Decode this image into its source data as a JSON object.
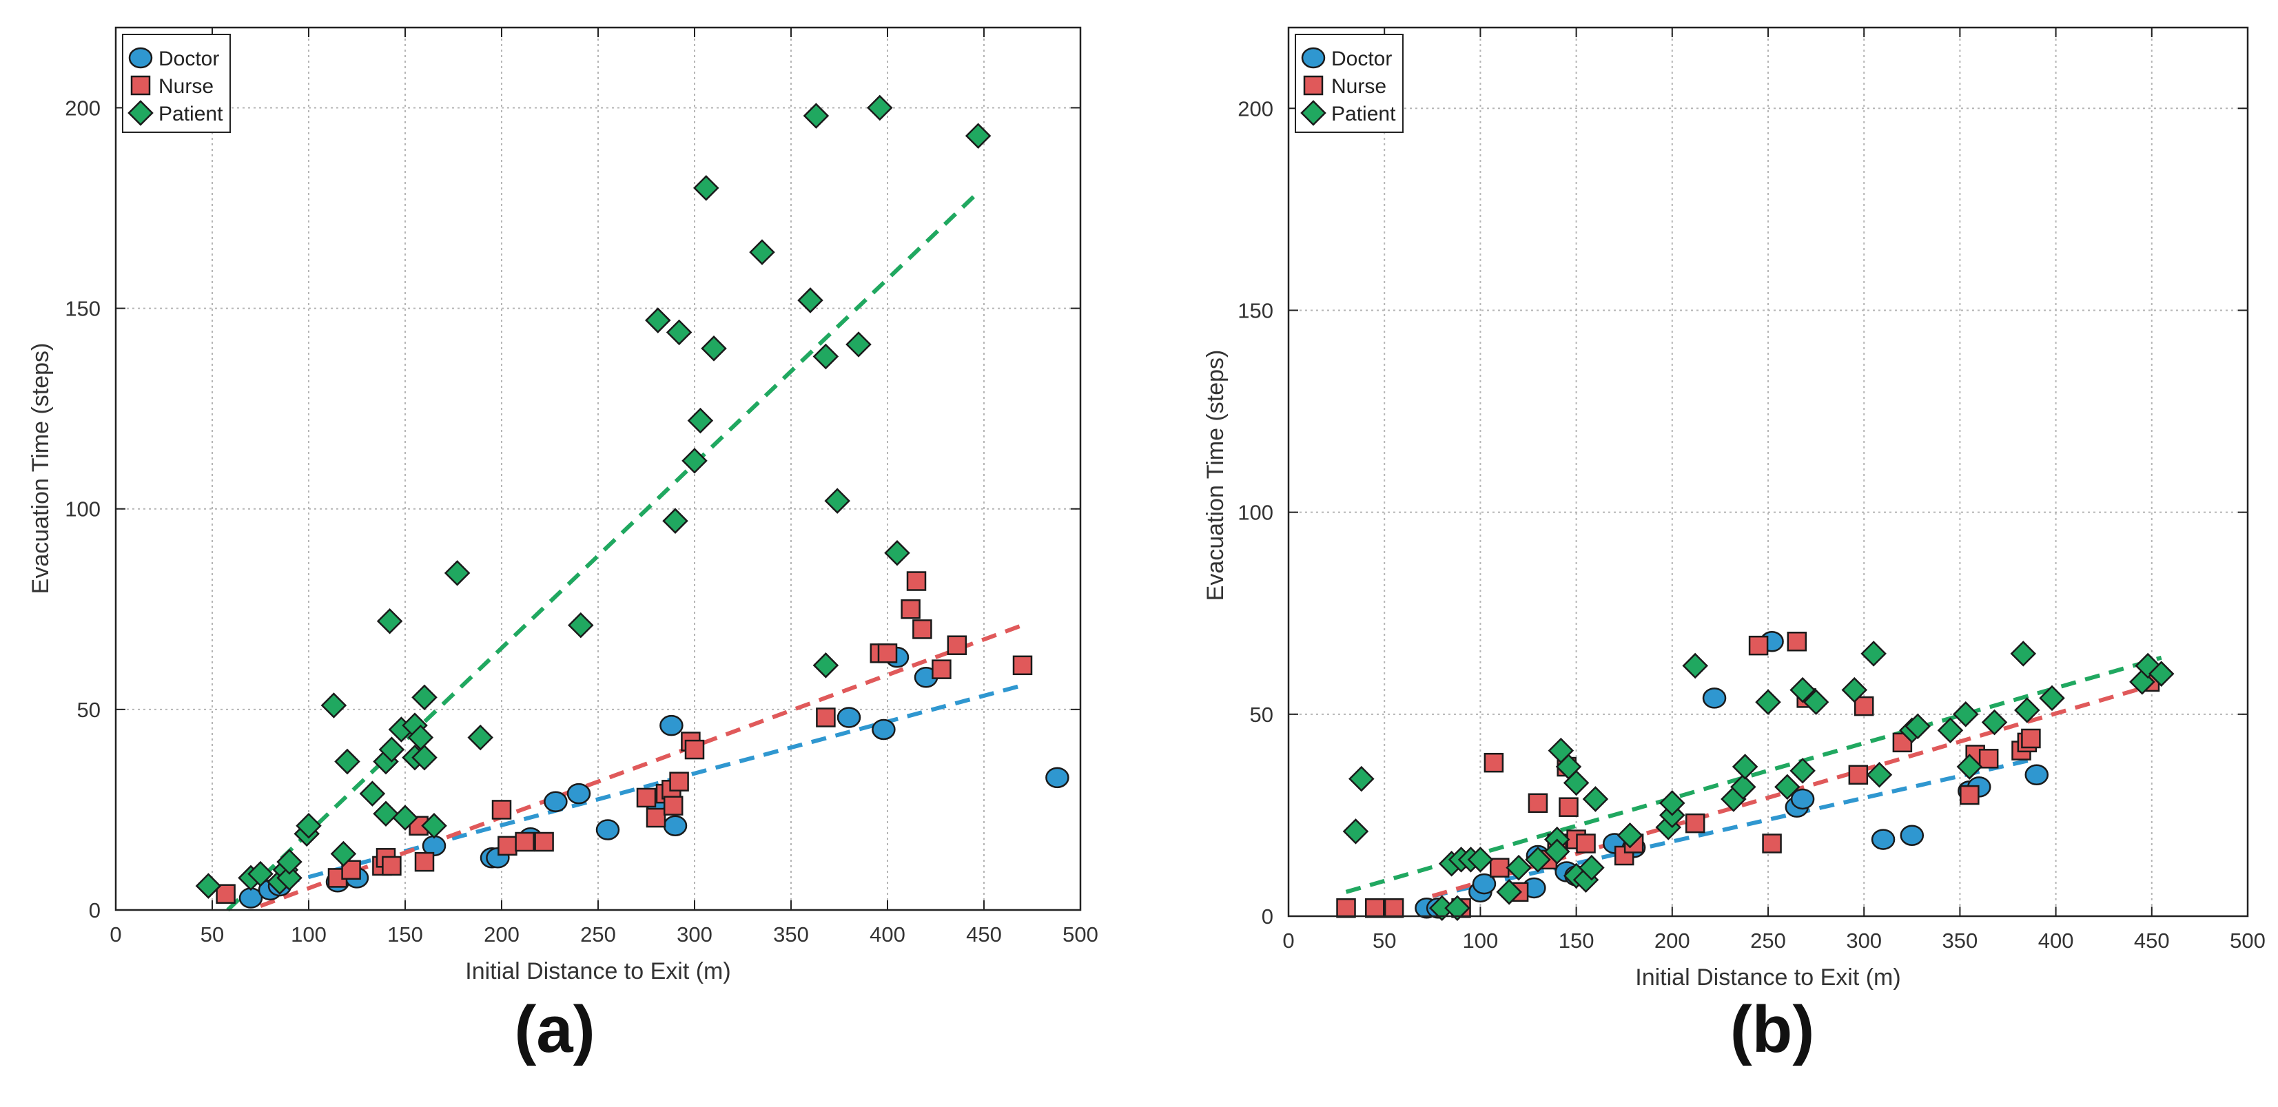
{
  "figure": {
    "panel_labels": [
      "(a)",
      "(b)"
    ]
  },
  "colors": {
    "doctor": "#2f97d0",
    "nurse": "#e0595a",
    "patient": "#20a860"
  },
  "chart_data": [
    {
      "type": "scatter",
      "panel": "(a)",
      "xlabel": "Initial Distance to Exit (m)",
      "ylabel": "Evacuation Time (steps)",
      "xlim": [
        0,
        500
      ],
      "ylim": [
        0,
        220
      ],
      "xticks": [
        0,
        50,
        100,
        150,
        200,
        250,
        300,
        350,
        400,
        450,
        500
      ],
      "yticks": [
        0,
        50,
        100,
        150,
        200
      ],
      "grid": true,
      "legend": "top-left",
      "series": [
        {
          "name": "Doctor",
          "marker": "circle",
          "color": "#2f97d0",
          "points": [
            [
              70,
              3
            ],
            [
              80,
              5
            ],
            [
              85,
              6
            ],
            [
              115,
              7
            ],
            [
              125,
              8
            ],
            [
              165,
              16
            ],
            [
              195,
              13
            ],
            [
              198,
              13
            ],
            [
              215,
              18
            ],
            [
              228,
              27
            ],
            [
              240,
              29
            ],
            [
              255,
              20
            ],
            [
              280,
              27
            ],
            [
              288,
              46
            ],
            [
              290,
              21
            ],
            [
              380,
              48
            ],
            [
              398,
              45
            ],
            [
              405,
              63
            ],
            [
              420,
              58
            ],
            [
              488,
              33
            ]
          ],
          "trend": [
            [
              75,
              5
            ],
            [
              470,
              56
            ]
          ]
        },
        {
          "name": "Nurse",
          "marker": "square",
          "color": "#e0595a",
          "points": [
            [
              57,
              4
            ],
            [
              115,
              8
            ],
            [
              122,
              10
            ],
            [
              138,
              11
            ],
            [
              140,
              13
            ],
            [
              143,
              11
            ],
            [
              157,
              21
            ],
            [
              160,
              12
            ],
            [
              200,
              25
            ],
            [
              203,
              16
            ],
            [
              212,
              17
            ],
            [
              222,
              17
            ],
            [
              275,
              28
            ],
            [
              280,
              23
            ],
            [
              285,
              29
            ],
            [
              288,
              30
            ],
            [
              289,
              26
            ],
            [
              292,
              32
            ],
            [
              298,
              42
            ],
            [
              300,
              40
            ],
            [
              368,
              48
            ],
            [
              396,
              64
            ],
            [
              400,
              64
            ],
            [
              412,
              75
            ],
            [
              415,
              82
            ],
            [
              418,
              70
            ],
            [
              428,
              60
            ],
            [
              436,
              66
            ],
            [
              470,
              61
            ]
          ],
          "trend": [
            [
              75,
              1
            ],
            [
              470,
              71
            ]
          ]
        },
        {
          "name": "Patient",
          "marker": "diamond",
          "color": "#20a860",
          "points": [
            [
              48,
              6
            ],
            [
              70,
              8
            ],
            [
              75,
              9
            ],
            [
              85,
              7
            ],
            [
              88,
              10
            ],
            [
              90,
              8
            ],
            [
              90,
              12
            ],
            [
              99,
              19
            ],
            [
              100,
              21
            ],
            [
              113,
              51
            ],
            [
              118,
              14
            ],
            [
              120,
              37
            ],
            [
              133,
              29
            ],
            [
              140,
              24
            ],
            [
              140,
              37
            ],
            [
              142,
              72
            ],
            [
              143,
              40
            ],
            [
              148,
              45
            ],
            [
              150,
              23
            ],
            [
              155,
              46
            ],
            [
              155,
              38
            ],
            [
              158,
              43
            ],
            [
              160,
              38
            ],
            [
              160,
              53
            ],
            [
              165,
              21
            ],
            [
              177,
              84
            ],
            [
              189,
              43
            ],
            [
              241,
              71
            ],
            [
              281,
              147
            ],
            [
              290,
              97
            ],
            [
              292,
              144
            ],
            [
              300,
              112
            ],
            [
              303,
              122
            ],
            [
              306,
              180
            ],
            [
              310,
              140
            ],
            [
              335,
              164
            ],
            [
              360,
              152
            ],
            [
              363,
              198
            ],
            [
              368,
              138
            ],
            [
              368,
              61
            ],
            [
              374,
              102
            ],
            [
              385,
              141
            ],
            [
              396,
              200
            ],
            [
              405,
              89
            ],
            [
              447,
              193
            ]
          ],
          "trend": [
            [
              58,
              0
            ],
            [
              445,
              178
            ]
          ]
        }
      ]
    },
    {
      "type": "scatter",
      "panel": "(b)",
      "xlabel": "Initial Distance to Exit (m)",
      "ylabel": "Evacuation Time (steps)",
      "xlim": [
        0,
        500
      ],
      "ylim": [
        0,
        220
      ],
      "xticks": [
        0,
        50,
        100,
        150,
        200,
        250,
        300,
        350,
        400,
        450,
        500
      ],
      "yticks": [
        0,
        50,
        100,
        150,
        200
      ],
      "grid": true,
      "legend": "top-left",
      "series": [
        {
          "name": "Doctor",
          "marker": "circle",
          "color": "#2f97d0",
          "points": [
            [
              72,
              2
            ],
            [
              78,
              2
            ],
            [
              100,
              6
            ],
            [
              102,
              8
            ],
            [
              128,
              7
            ],
            [
              130,
              15
            ],
            [
              145,
              11
            ],
            [
              150,
              10
            ],
            [
              170,
              18
            ],
            [
              180,
              17
            ],
            [
              222,
              54
            ],
            [
              252,
              68
            ],
            [
              265,
              27
            ],
            [
              268,
              29
            ],
            [
              310,
              19
            ],
            [
              325,
              20
            ],
            [
              355,
              31
            ],
            [
              360,
              32
            ],
            [
              390,
              35
            ]
          ],
          "trend": [
            [
              75,
              5
            ],
            [
              390,
              39
            ]
          ]
        },
        {
          "name": "Nurse",
          "marker": "square",
          "color": "#e0595a",
          "points": [
            [
              30,
              2
            ],
            [
              45,
              2
            ],
            [
              55,
              2
            ],
            [
              90,
              2
            ],
            [
              107,
              38
            ],
            [
              110,
              12
            ],
            [
              120,
              6
            ],
            [
              130,
              28
            ],
            [
              135,
              14
            ],
            [
              140,
              18
            ],
            [
              145,
              37
            ],
            [
              146,
              27
            ],
            [
              150,
              19
            ],
            [
              155,
              18
            ],
            [
              175,
              15
            ],
            [
              180,
              18
            ],
            [
              212,
              23
            ],
            [
              245,
              67
            ],
            [
              265,
              68
            ],
            [
              270,
              54
            ],
            [
              252,
              18
            ],
            [
              297,
              35
            ],
            [
              300,
              52
            ],
            [
              320,
              43
            ],
            [
              355,
              30
            ],
            [
              358,
              40
            ],
            [
              365,
              39
            ],
            [
              382,
              41
            ],
            [
              385,
              43
            ],
            [
              387,
              44
            ],
            [
              449,
              58
            ]
          ],
          "trend": [
            [
              75,
              5
            ],
            [
              449,
              57
            ]
          ]
        },
        {
          "name": "Patient",
          "marker": "diamond",
          "color": "#20a860",
          "points": [
            [
              35,
              21
            ],
            [
              38,
              34
            ],
            [
              80,
              2
            ],
            [
              85,
              13
            ],
            [
              88,
              2
            ],
            [
              90,
              14
            ],
            [
              95,
              14
            ],
            [
              100,
              14
            ],
            [
              115,
              6
            ],
            [
              120,
              12
            ],
            [
              130,
              14
            ],
            [
              140,
              19
            ],
            [
              140,
              16
            ],
            [
              142,
              41
            ],
            [
              146,
              37
            ],
            [
              150,
              33
            ],
            [
              150,
              10
            ],
            [
              155,
              9
            ],
            [
              158,
              12
            ],
            [
              160,
              29
            ],
            [
              178,
              20
            ],
            [
              198,
              22
            ],
            [
              200,
              25
            ],
            [
              200,
              28
            ],
            [
              212,
              62
            ],
            [
              232,
              29
            ],
            [
              237,
              32
            ],
            [
              238,
              37
            ],
            [
              250,
              53
            ],
            [
              260,
              32
            ],
            [
              268,
              56
            ],
            [
              268,
              36
            ],
            [
              275,
              53
            ],
            [
              295,
              56
            ],
            [
              305,
              65
            ],
            [
              308,
              35
            ],
            [
              325,
              46
            ],
            [
              328,
              47
            ],
            [
              345,
              46
            ],
            [
              353,
              50
            ],
            [
              355,
              37
            ],
            [
              368,
              48
            ],
            [
              383,
              65
            ],
            [
              385,
              51
            ],
            [
              398,
              54
            ],
            [
              445,
              58
            ],
            [
              448,
              62
            ],
            [
              455,
              60
            ]
          ],
          "trend": [
            [
              30,
              6
            ],
            [
              455,
              64
            ]
          ]
        }
      ]
    }
  ]
}
